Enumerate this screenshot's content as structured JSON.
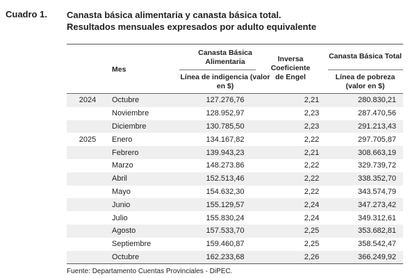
{
  "cuadro": "Cuadro 1.",
  "title_line1": "Canasta básica alimentaria y canasta básica total.",
  "title_line2": "Resultados mensuales expresados por adulto equivalente",
  "headers": {
    "mes": "Mes",
    "cba": "Canasta Básica Alimentaria",
    "cba_sub": "Línea de indigencia (valor en $)",
    "engel": "Inversa Coeficiente de Engel",
    "cbt": "Canasta Básica Total",
    "cbt_sub": "Línea de pobreza (valor en $)"
  },
  "rows": [
    {
      "year": "2024",
      "mes": "Octubre",
      "cba": "127.276,76",
      "engel": "2,21",
      "cbt": "280.830,21"
    },
    {
      "year": "",
      "mes": "Noviembre",
      "cba": "128.952,97",
      "engel": "2,23",
      "cbt": "287.470,56"
    },
    {
      "year": "",
      "mes": "Diciembre",
      "cba": "130.785,50",
      "engel": "2,23",
      "cbt": "291.213,43"
    },
    {
      "year": "2025",
      "mes": "Enero",
      "cba": "134.167,82",
      "engel": "2,22",
      "cbt": "297.705,87"
    },
    {
      "year": "",
      "mes": "Febrero",
      "cba": "139.943,23",
      "engel": "2,21",
      "cbt": "308.663,19"
    },
    {
      "year": "",
      "mes": "Marzo",
      "cba": "148.273.86",
      "engel": "2,22",
      "cbt": "329.739,72"
    },
    {
      "year": "",
      "mes": "Abril",
      "cba": "152.513,46",
      "engel": "2,22",
      "cbt": "338.352,70"
    },
    {
      "year": "",
      "mes": "Mayo",
      "cba": "154.632,30",
      "engel": "2,22",
      "cbt": "343.574,79"
    },
    {
      "year": "",
      "mes": "Junio",
      "cba": "155.129,57",
      "engel": "2,24",
      "cbt": "347.273,42"
    },
    {
      "year": "",
      "mes": "Julio",
      "cba": "155.830,24",
      "engel": "2,24",
      "cbt": "349.312,61"
    },
    {
      "year": "",
      "mes": "Agosto",
      "cba": "157.533,70",
      "engel": "2,25",
      "cbt": "353.682,81"
    },
    {
      "year": "",
      "mes": "Septiembre",
      "cba": "159.460,87",
      "engel": "2,25",
      "cbt": "358.542,47"
    },
    {
      "year": "",
      "mes": "Octubre",
      "cba": "162.233,68",
      "engel": "2,26",
      "cbt": "366.249,92"
    }
  ],
  "footer": "Fuente: Departamento Cuentas Provinciales - DiPEC."
}
